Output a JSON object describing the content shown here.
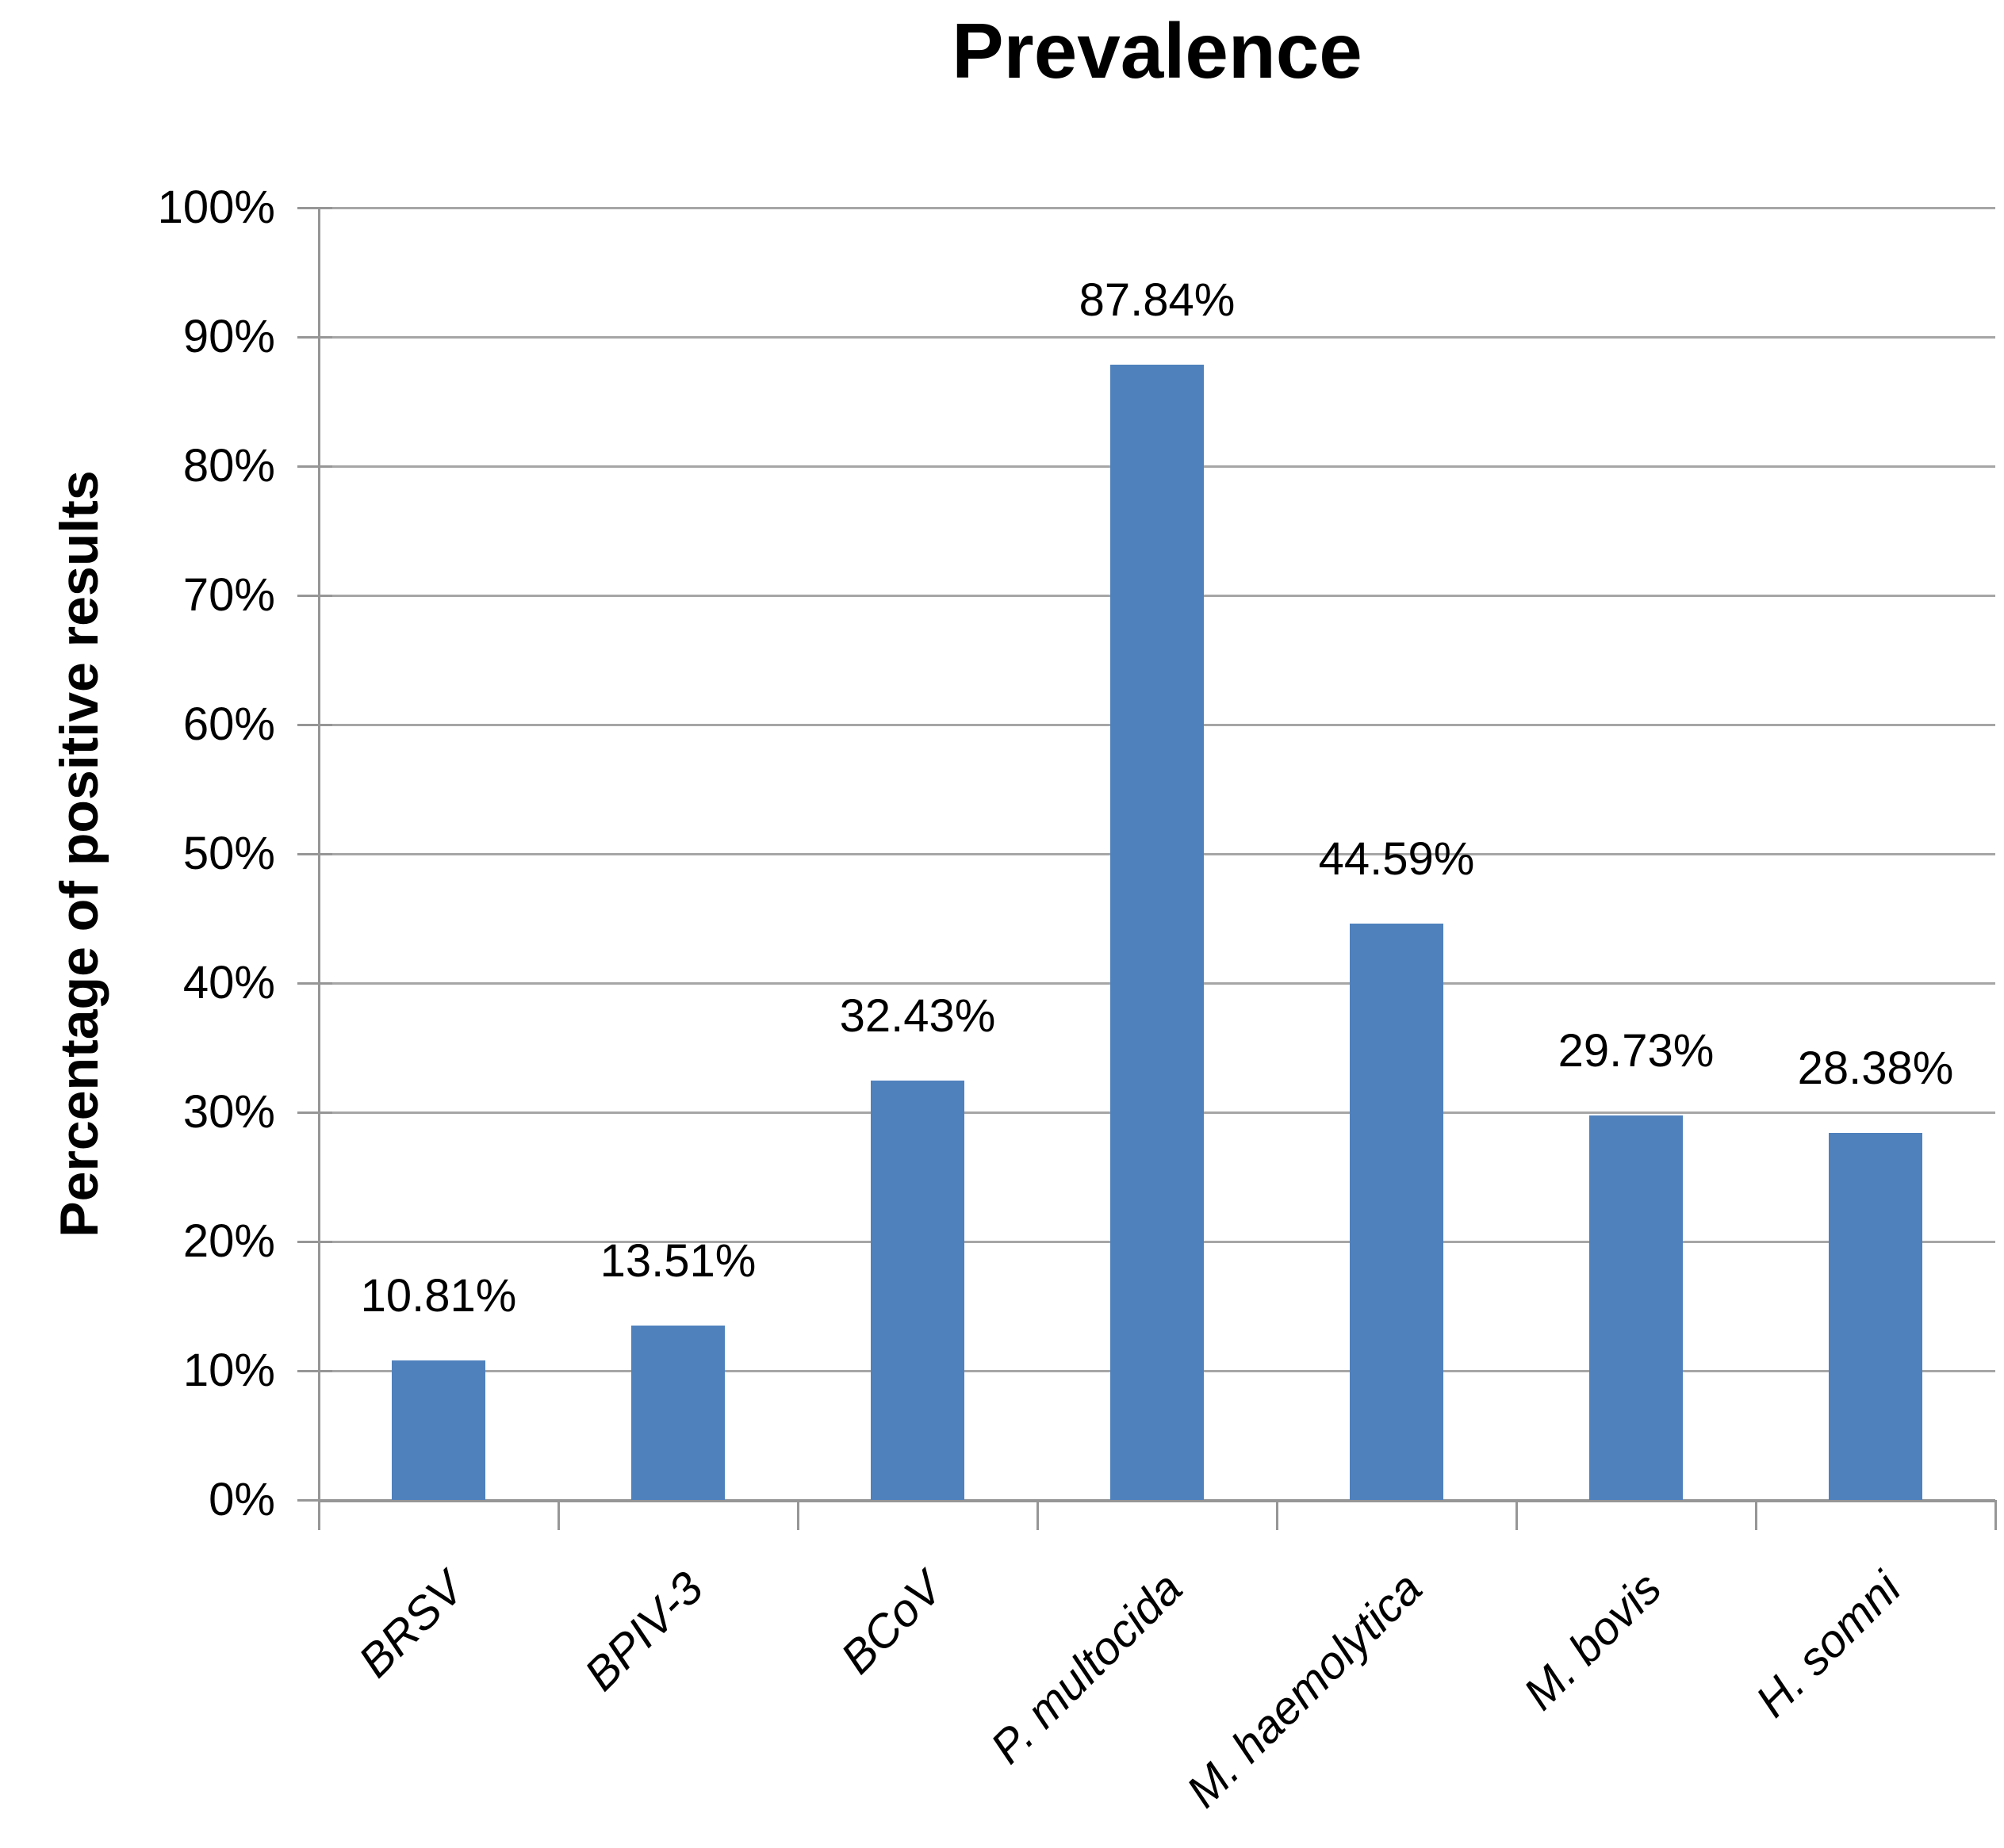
{
  "chart_data": {
    "type": "bar",
    "title": "Prevalence",
    "xlabel": "",
    "ylabel": "Percentage of positive results",
    "categories": [
      "BRSV",
      "BPIV-3",
      "BCoV",
      "P. multocida",
      "M. haemolytica",
      "M. bovis",
      "H. somni"
    ],
    "values": [
      10.81,
      13.51,
      32.43,
      87.84,
      44.59,
      29.73,
      28.38
    ],
    "data_labels": [
      "10.81%",
      "13.51%",
      "32.43%",
      "87.84%",
      "44.59%",
      "29.73%",
      "28.38%"
    ],
    "y_tick_labels": [
      "100%",
      "90%",
      "80%",
      "70%",
      "60%",
      "50%",
      "40%",
      "30%",
      "20%",
      "10%",
      "0%"
    ],
    "ylim": [
      0,
      100
    ],
    "y_tick_step": 10,
    "grid": true,
    "legend_position": "none",
    "colors": {
      "bar_fill": "#4F81BD",
      "gridline": "#A6A6A6",
      "axis": "#969696",
      "text": "#000000"
    }
  }
}
